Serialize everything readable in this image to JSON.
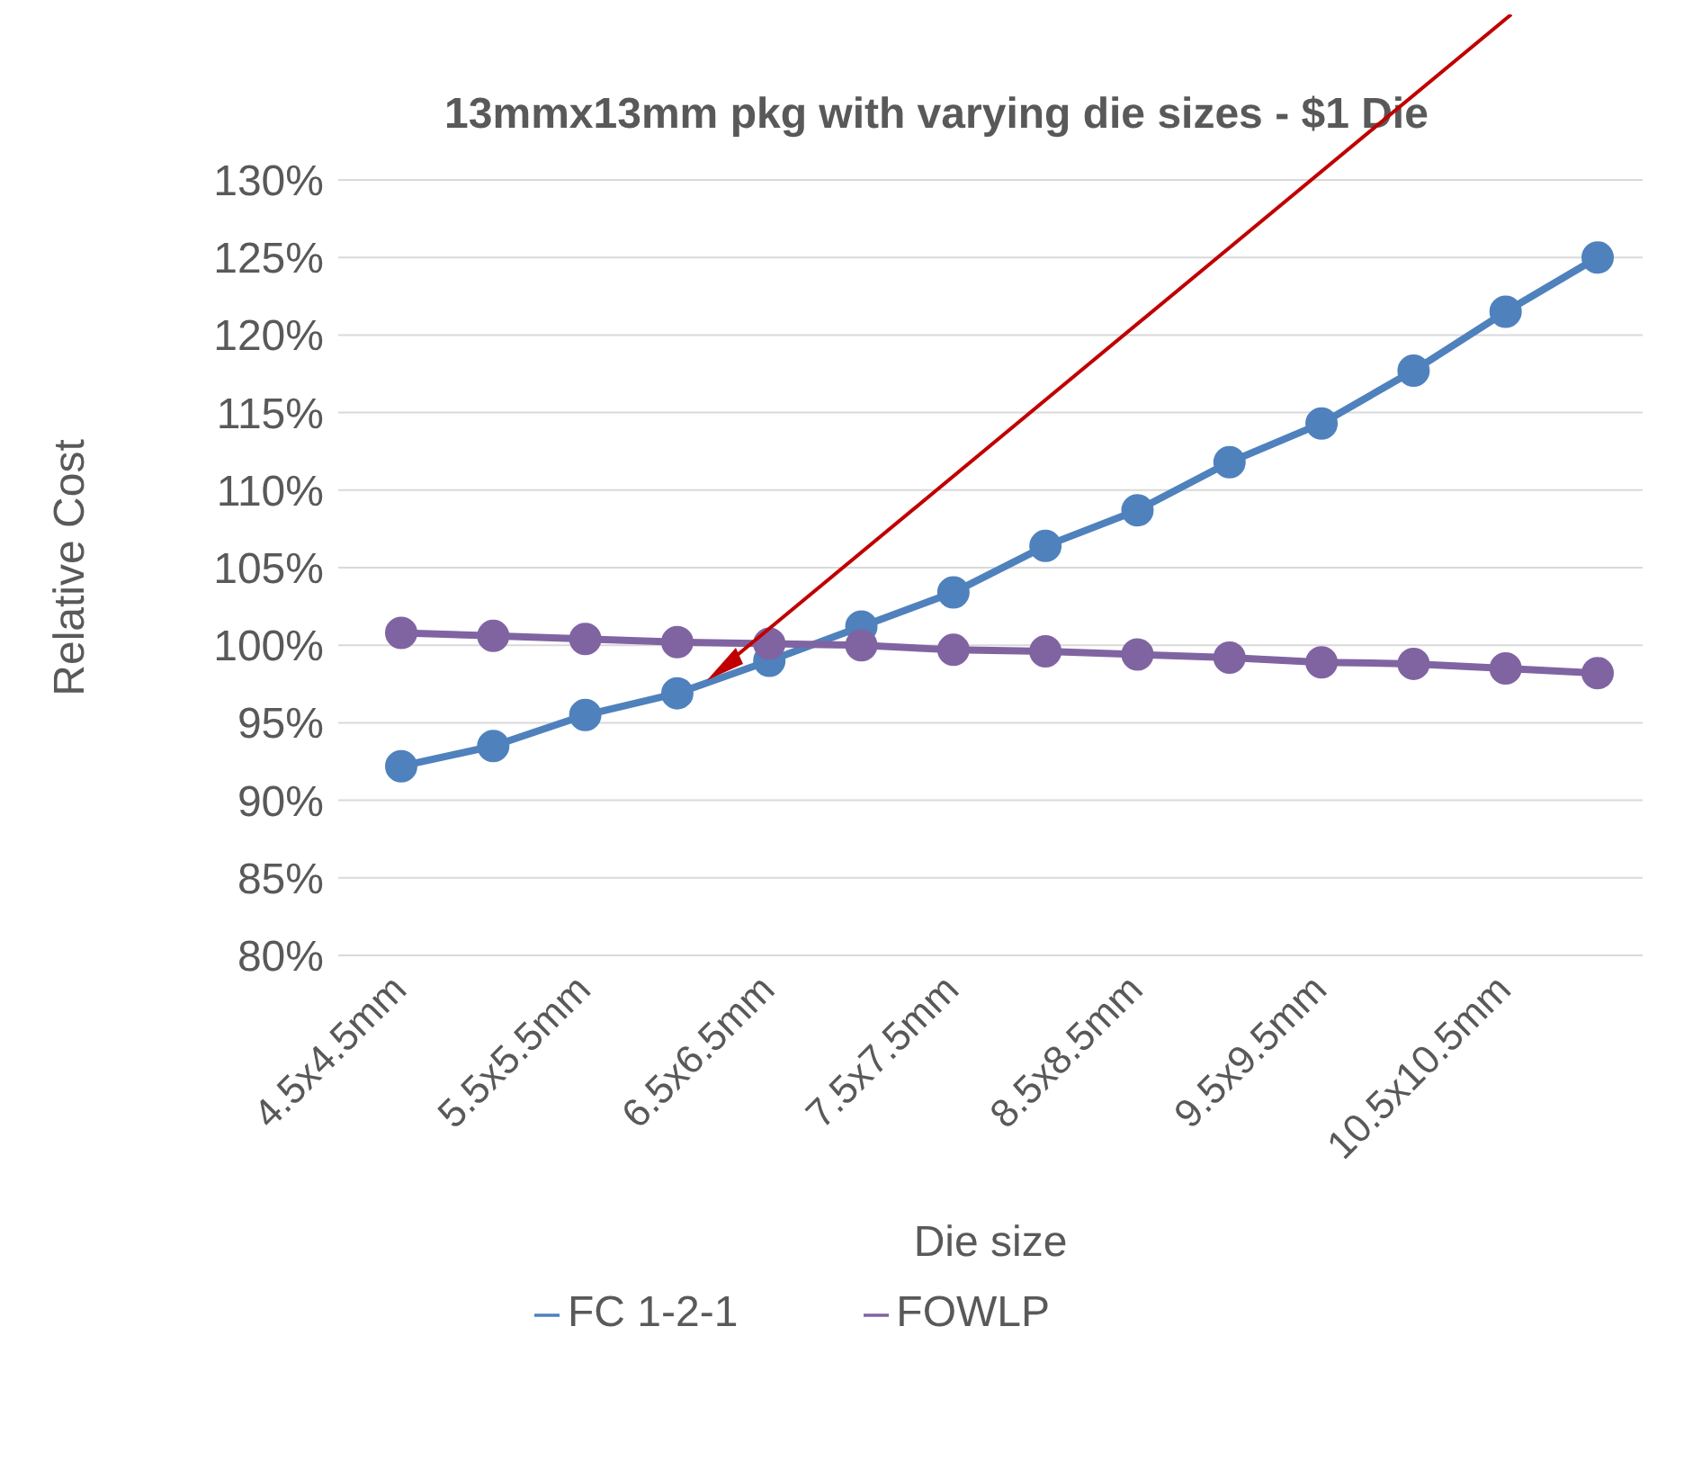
{
  "chart_data": {
    "type": "line",
    "title": "13mmx13mm pkg with varying die sizes - $1 Die",
    "xlabel": "Die size",
    "ylabel": "Relative Cost",
    "categories": [
      "4.5x4.5mm",
      null,
      "5.5x5.5mm",
      null,
      "6.5x6.5mm",
      null,
      "7.5x7.5mm",
      null,
      "8.5x8.5mm",
      null,
      "9.5x9.5mm",
      null,
      "10.5x10.5mm",
      null
    ],
    "series": [
      {
        "name": "FC 1-2-1",
        "color": "#4f81bd",
        "values": [
          92.2,
          93.5,
          95.5,
          96.9,
          99.0,
          101.2,
          103.4,
          106.4,
          108.7,
          111.8,
          114.3,
          117.7,
          121.5,
          125.0
        ]
      },
      {
        "name": "FOWLP",
        "color": "#8064a2",
        "values": [
          100.8,
          100.6,
          100.4,
          100.2,
          100.1,
          100.0,
          99.7,
          99.6,
          99.4,
          99.2,
          98.9,
          98.8,
          98.5,
          98.2
        ]
      }
    ],
    "ylim": [
      80,
      130
    ],
    "yticks": [
      {
        "value": 80,
        "label": "80%"
      },
      {
        "value": 85,
        "label": "85%"
      },
      {
        "value": 90,
        "label": "90%"
      },
      {
        "value": 95,
        "label": "95%"
      },
      {
        "value": 100,
        "label": "100%"
      },
      {
        "value": 105,
        "label": "105%"
      },
      {
        "value": 110,
        "label": "110%"
      },
      {
        "value": 115,
        "label": "115%"
      },
      {
        "value": 120,
        "label": "120%"
      },
      {
        "value": 125,
        "label": "125%"
      },
      {
        "value": 130,
        "label": "130%"
      }
    ],
    "grid": "y",
    "legend": "bottom",
    "marker": "circle",
    "line_style": "solid"
  }
}
